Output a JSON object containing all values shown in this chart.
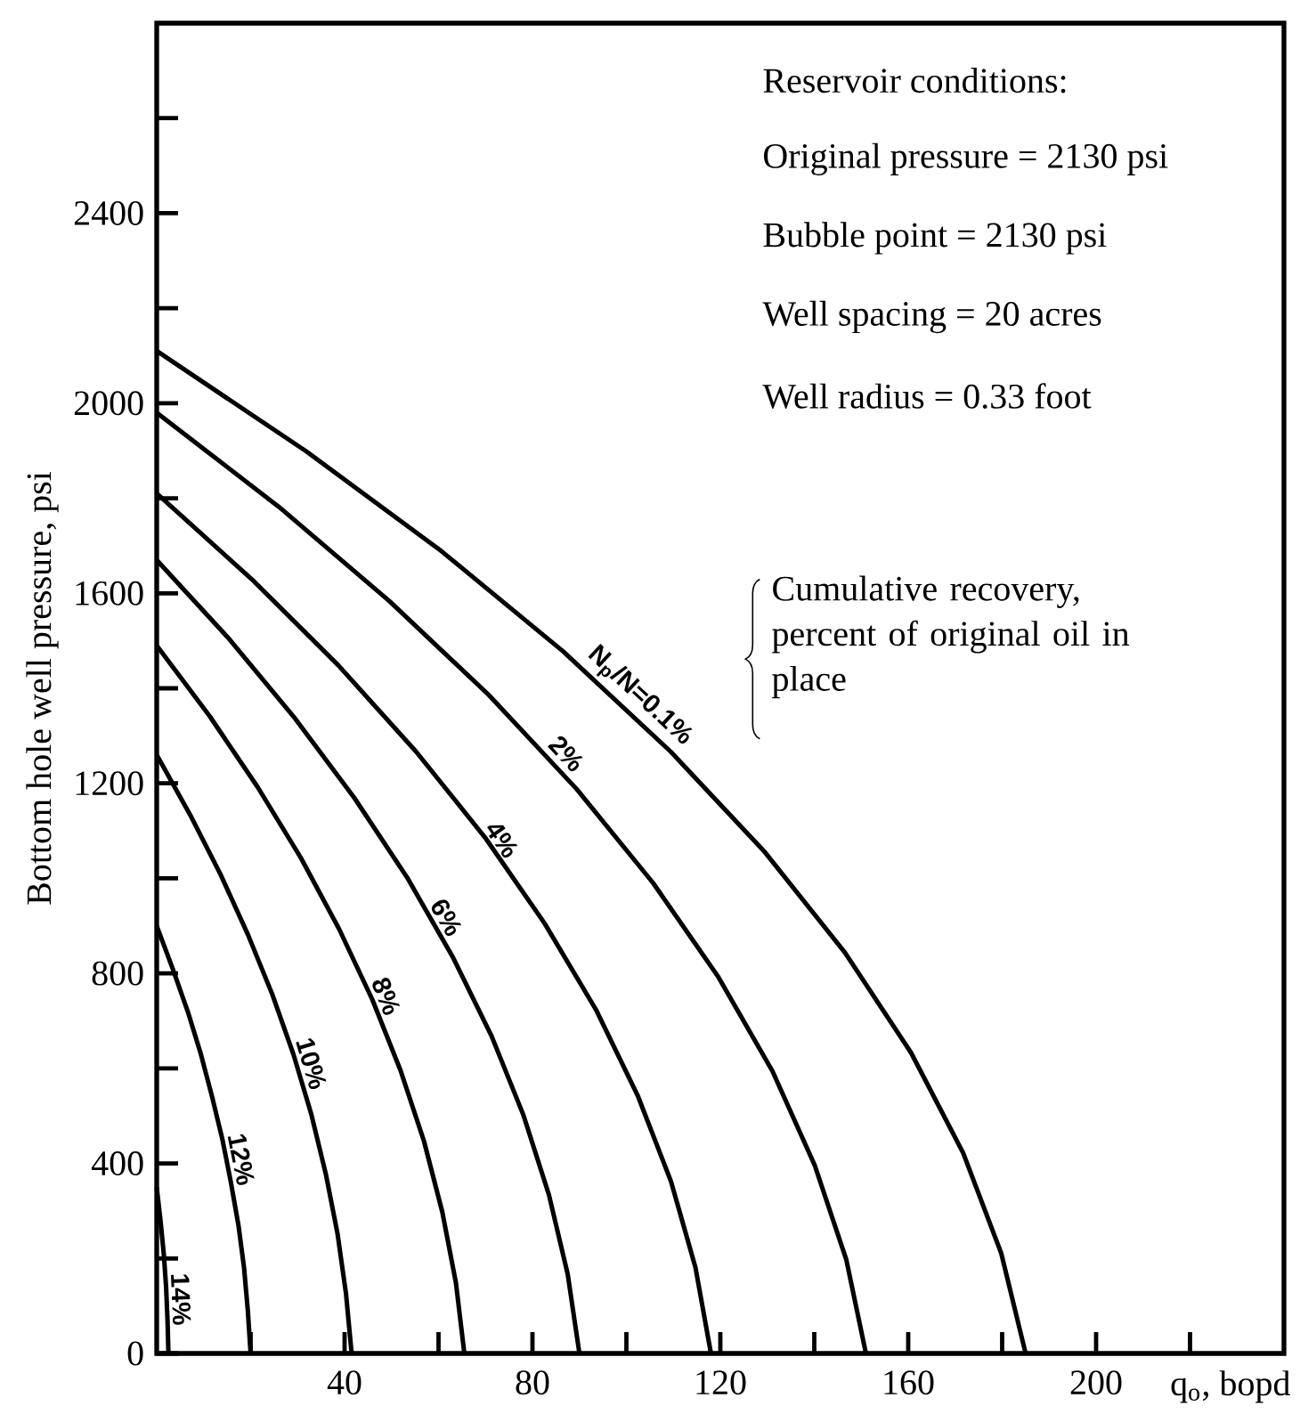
{
  "chart_data": {
    "type": "line",
    "xlabel": "q$_{o}$, bopd",
    "ylabel": "Bottom hole well pressure, psi",
    "xlim": [
      0,
      240
    ],
    "ylim": [
      0,
      2800
    ],
    "xticks": [
      {
        "value": 20,
        "label": null
      },
      40,
      {
        "value": 60,
        "label": null
      },
      80,
      {
        "value": 100,
        "label": null
      },
      120,
      {
        "value": 140,
        "label": null
      },
      160,
      {
        "value": 180,
        "label": null
      },
      200,
      {
        "value": 220,
        "label": null
      }
    ],
    "yticks": [
      0,
      {
        "value": 200,
        "label": null
      },
      400,
      {
        "value": 600,
        "label": null
      },
      800,
      {
        "value": 1000,
        "label": null
      },
      1200,
      {
        "value": 1400,
        "label": null
      },
      1600,
      {
        "value": 1800,
        "label": null
      },
      2000,
      {
        "value": 2200,
        "label": null
      },
      2400,
      {
        "value": 2600,
        "label": null
      }
    ],
    "line_style": "solid",
    "marker": "none",
    "series": [
      {
        "color": "#000000",
        "x": [
          0,
          31.8,
          60.7,
          86.6,
          109.5,
          129.5,
          146.5,
          160.6,
          171.7,
          179.8,
          185
        ],
        "values": [
          2110,
          1899,
          1688,
          1477,
          1266,
          1055,
          844,
          633,
          422,
          211,
          0
        ]
      },
      {
        "color": "#000000",
        "x": [
          0,
          26.0,
          49.5,
          70.7,
          89.4,
          105.7,
          119.6,
          131.1,
          140.1,
          146.8,
          151
        ],
        "values": [
          1980,
          1782,
          1584,
          1386,
          1188,
          990,
          792,
          594,
          396,
          198,
          0
        ]
      },
      {
        "color": "#000000",
        "x": [
          0,
          20.3,
          38.7,
          55.2,
          69.9,
          82.6,
          93.5,
          102.4,
          109.5,
          114.7,
          118
        ],
        "values": [
          1810,
          1629,
          1448,
          1267,
          1086,
          905,
          724,
          543,
          362,
          181,
          0
        ]
      },
      {
        "color": "#000000",
        "x": [
          0,
          15.5,
          29.5,
          42.1,
          53.3,
          63.0,
          71.3,
          78.1,
          83.5,
          87.5,
          90
        ],
        "values": [
          1670,
          1503,
          1336,
          1169,
          1002,
          835,
          668,
          501,
          334,
          167,
          0
        ]
      },
      {
        "color": "#000000",
        "x": [
          0,
          11.3,
          21.5,
          30.7,
          38.8,
          45.9,
          51.9,
          56.9,
          60.8,
          63.7,
          65.5
        ],
        "values": [
          1490,
          1341,
          1192,
          1043,
          894,
          745,
          596,
          447,
          298,
          149,
          0
        ]
      },
      {
        "color": "#000000",
        "x": [
          0,
          7.1,
          13.6,
          19.4,
          24.6,
          29.1,
          32.9,
          36.0,
          38.5,
          40.3,
          41.5
        ],
        "values": [
          1260,
          1134,
          1008,
          882,
          756,
          630,
          504,
          378,
          252,
          126,
          0
        ]
      },
      {
        "color": "#000000",
        "x": [
          0,
          3.4,
          6.6,
          9.4,
          11.8,
          14.0,
          15.8,
          17.4,
          18.6,
          19.4,
          20
        ],
        "values": [
          900,
          810,
          720,
          630,
          540,
          450,
          360,
          270,
          180,
          90,
          0
        ]
      },
      {
        "color": "#000000",
        "x": [
          0,
          0.8,
          1.5,
          2.0,
          2.3,
          2.5
        ],
        "values": [
          350,
          280,
          210,
          140,
          70,
          0
        ]
      }
    ],
    "annotations": [
      "Reservoir conditions:",
      "Original pressure = 2130 psi",
      "Bubble point = 2130 psi",
      "Well spacing = 20 acres",
      "Well radius = 0.33 foot",
      "Cumulative recovery, percent of original oil in place",
      {
        "text": "N$_{p}$/N=0.1%",
        "x": 100,
        "y": 1354
      },
      {
        "text": "2%",
        "x": 85,
        "y": 1242
      },
      {
        "text": "4%",
        "x": 71,
        "y": 1065
      },
      {
        "text": "6%",
        "x": 59,
        "y": 903
      },
      {
        "text": "8%",
        "x": 46,
        "y": 741
      },
      {
        "text": "10%",
        "x": 30,
        "y": 602
      },
      {
        "text": "12%",
        "x": 15,
        "y": 403
      },
      {
        "text": "14%",
        "x": 2.1,
        "y": 113
      }
    ]
  }
}
